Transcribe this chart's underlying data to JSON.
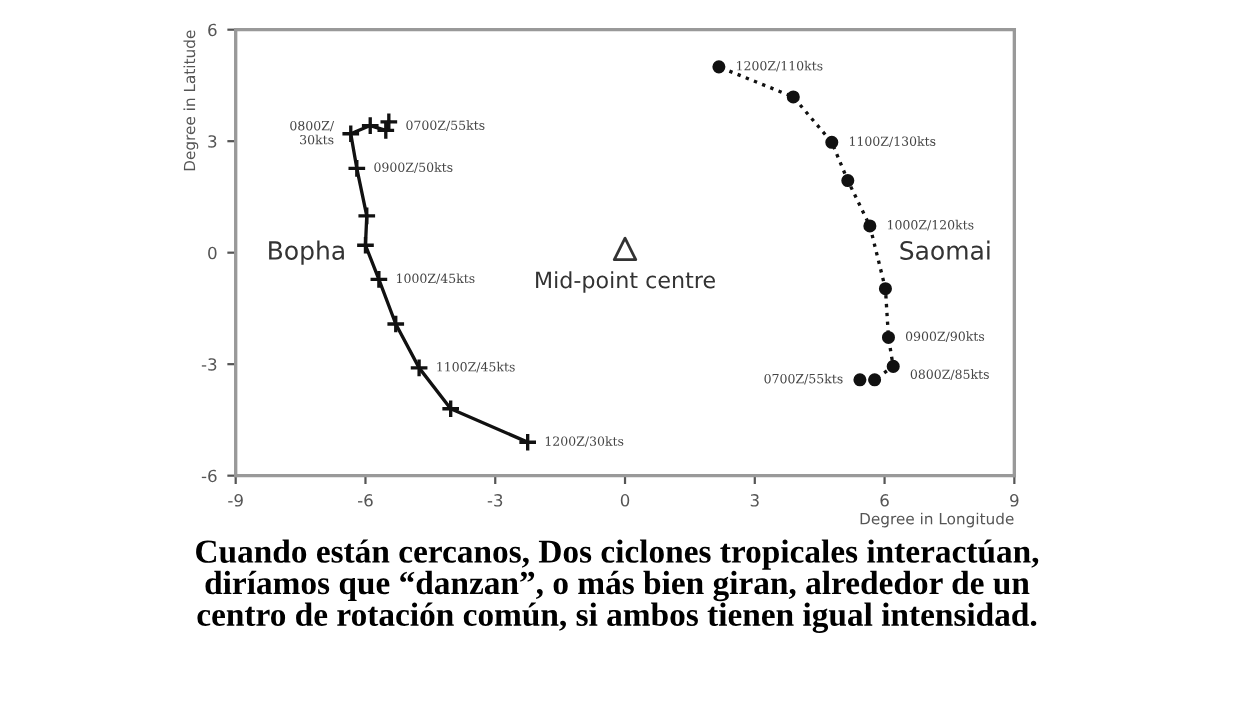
{
  "chart_data": {
    "type": "line",
    "xlabel": "Degree in Longitude",
    "ylabel": "Degree in Latitude",
    "xlim": [
      -9,
      9
    ],
    "xticks": [
      -9,
      -6,
      -3,
      0,
      3,
      6,
      9
    ],
    "ylim": [
      -6,
      6
    ],
    "yticks": [
      -6,
      -3,
      0,
      3,
      6
    ],
    "grid": false,
    "legend": false,
    "series": [
      {
        "name": "Bopha",
        "color": "#111111",
        "marker": "cross",
        "line_style": "solid",
        "x": [
          -5.46,
          -5.53,
          -5.89,
          -6.34,
          -6.2,
          -5.97,
          -6.0,
          -5.69,
          -5.3,
          -4.76,
          -4.03,
          -2.25
        ],
        "values": [
          3.52,
          3.29,
          3.42,
          3.2,
          2.27,
          0.99,
          0.2,
          -0.72,
          -1.92,
          -3.1,
          -4.2,
          -5.1
        ]
      },
      {
        "name": "Saomai",
        "color": "#111111",
        "marker": "circle",
        "line_style": "dotted",
        "x": [
          5.43,
          5.77,
          6.2,
          6.09,
          6.02,
          5.66,
          5.15,
          4.78,
          3.89,
          2.17
        ],
        "values": [
          -3.42,
          -3.42,
          -3.06,
          -2.28,
          -0.97,
          0.72,
          1.94,
          2.97,
          4.19,
          5.0
        ]
      },
      {
        "name": "Mid-point centre",
        "type": "scatter",
        "color": "#333333",
        "marker": "triangle",
        "x": [
          0
        ],
        "values": [
          0.1
        ]
      }
    ],
    "annotations": [
      {
        "text": "0700Z/55kts",
        "x": -5.46,
        "y": 3.4
      },
      {
        "text": "0800Z/\n30kts",
        "x": -6.34,
        "y": 3.2
      },
      {
        "text": "0900Z/50kts",
        "x": -6.2,
        "y": 2.27
      },
      {
        "text": "1000Z/45kts",
        "x": -5.69,
        "y": -0.72
      },
      {
        "text": "1100Z/45kts",
        "x": -4.76,
        "y": -3.1
      },
      {
        "text": "1200Z/30kts",
        "x": -2.25,
        "y": -5.1
      },
      {
        "text": "1200Z/110kts",
        "x": 2.17,
        "y": 5.0
      },
      {
        "text": "1100Z/130kts",
        "x": 4.78,
        "y": 2.97
      },
      {
        "text": "1000Z/120kts",
        "x": 5.66,
        "y": 0.72
      },
      {
        "text": "0900Z/90kts",
        "x": 6.09,
        "y": -2.28
      },
      {
        "text": "0800Z/85kts",
        "x": 6.2,
        "y": -3.3
      },
      {
        "text": "0700Z/55kts",
        "x": 5.43,
        "y": -3.42
      },
      "Cuando están cercanos, Dos ciclones tropicales interactúan,\ndiríamos que “danzan”, o más bien giran, alrededor de un\ncentro de rotación común, si ambos tienen igual intensidad."
    ]
  }
}
